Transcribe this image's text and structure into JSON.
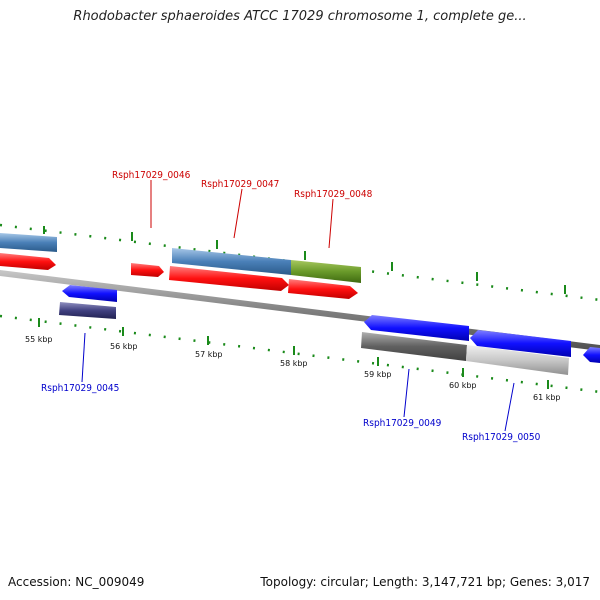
{
  "header": {
    "title": "Rhodobacter sphaeroides ATCC 17029 chromosome 1, complete ge..."
  },
  "footer": {
    "accession": "Accession: NC_009049",
    "summary": "Topology: circular; Length: 3,147,721 bp; Genes: 3,017"
  },
  "colors": {
    "forward_cds": "#ff1a1a",
    "reverse_cds": "#1a1aff",
    "label_forward": "#cc0000",
    "label_reverse": "#0000cc",
    "backbone": "#888888",
    "tick": "#1a8a1a"
  },
  "scale": {
    "tick_labels": [
      "55 kbp",
      "56 kbp",
      "57 kbp",
      "58 kbp",
      "59 kbp",
      "60 kbp",
      "61 kbp"
    ]
  },
  "genes": {
    "forward_labels": [
      "Rsph17029_0046",
      "Rsph17029_0047",
      "Rsph17029_0048"
    ],
    "reverse_labels": [
      "Rsph17029_0045",
      "Rsph17029_0049",
      "Rsph17029_0050"
    ]
  }
}
